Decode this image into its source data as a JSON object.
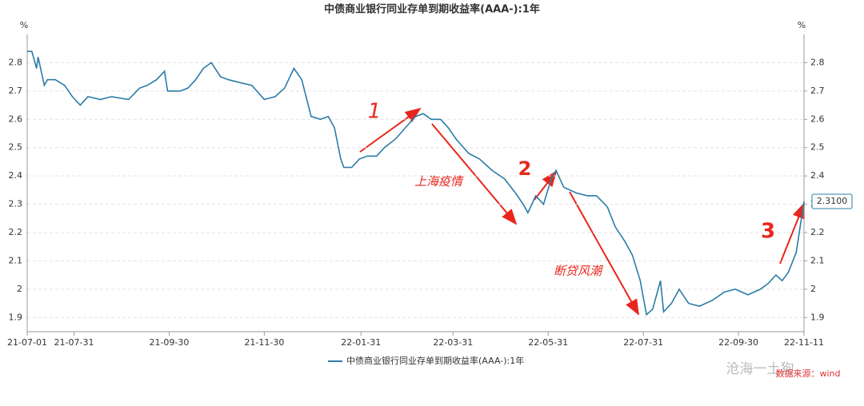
{
  "chart_data": {
    "type": "line",
    "title": "中债商业银行同业存单到期收益率(AAA-):1年",
    "y_unit": "%",
    "y2_unit": "%",
    "x": [
      "21-07-01",
      "21-07-04",
      "21-07-07",
      "21-07-08",
      "21-07-12",
      "21-07-14",
      "21-07-19",
      "21-07-25",
      "21-07-30",
      "21-08-04",
      "21-08-09",
      "21-08-17",
      "21-08-24",
      "21-09-04",
      "21-09-11",
      "21-09-16",
      "21-09-22",
      "21-09-27",
      "21-09-29",
      "21-10-07",
      "21-10-12",
      "21-10-17",
      "21-10-22",
      "21-10-27",
      "21-11-02",
      "21-11-07",
      "21-11-14",
      "21-11-22",
      "21-11-30",
      "21-12-07",
      "21-12-13",
      "21-12-19",
      "21-12-24",
      "21-12-30",
      "22-01-05",
      "22-01-10",
      "22-01-14",
      "22-01-18",
      "22-01-20",
      "22-01-25",
      "22-01-30",
      "22-02-04",
      "22-02-10",
      "22-02-15",
      "22-02-22",
      "22-03-02",
      "22-03-07",
      "22-03-12",
      "22-03-17",
      "22-03-23",
      "22-03-28",
      "22-04-02",
      "22-04-10",
      "22-04-17",
      "22-04-25",
      "22-05-03",
      "22-05-10",
      "22-05-15",
      "22-05-18",
      "22-05-23",
      "22-05-28",
      "22-06-02",
      "22-06-05",
      "22-06-10",
      "22-06-18",
      "22-06-25",
      "22-07-01",
      "22-07-08",
      "22-07-13",
      "22-07-19",
      "22-07-24",
      "22-07-29",
      "22-08-02",
      "22-08-06",
      "22-08-11",
      "22-08-13",
      "22-08-18",
      "22-08-23",
      "22-08-29",
      "22-09-05",
      "22-09-13",
      "22-09-21",
      "22-09-28",
      "22-10-06",
      "22-10-14",
      "22-10-19",
      "22-10-24",
      "22-10-28",
      "22-11-01",
      "22-11-06",
      "22-11-11"
    ],
    "series": [
      {
        "name": "中债商业银行同业存单到期收益率(AAA-):1年",
        "color": "#2b7ca8",
        "values": [
          2.84,
          2.84,
          2.78,
          2.82,
          2.72,
          2.74,
          2.74,
          2.72,
          2.68,
          2.65,
          2.68,
          2.67,
          2.68,
          2.67,
          2.71,
          2.72,
          2.74,
          2.77,
          2.7,
          2.7,
          2.71,
          2.74,
          2.78,
          2.8,
          2.75,
          2.74,
          2.73,
          2.72,
          2.67,
          2.68,
          2.71,
          2.78,
          2.74,
          2.61,
          2.6,
          2.61,
          2.57,
          2.46,
          2.43,
          2.43,
          2.46,
          2.47,
          2.47,
          2.5,
          2.53,
          2.58,
          2.61,
          2.62,
          2.6,
          2.6,
          2.57,
          2.53,
          2.48,
          2.46,
          2.42,
          2.39,
          2.34,
          2.3,
          2.27,
          2.33,
          2.3,
          2.39,
          2.42,
          2.36,
          2.34,
          2.33,
          2.33,
          2.29,
          2.22,
          2.17,
          2.12,
          2.03,
          1.91,
          1.93,
          2.03,
          1.92,
          1.95,
          2.0,
          1.95,
          1.94,
          1.96,
          1.99,
          2.0,
          1.98,
          2.0,
          2.02,
          2.05,
          2.03,
          2.06,
          2.13,
          2.31
        ],
        "value_labels": [
          null,
          null,
          null,
          null,
          null,
          null,
          null,
          null,
          null,
          null,
          null,
          null,
          null,
          null,
          null,
          null,
          null,
          null,
          null,
          null,
          null,
          null,
          null,
          null,
          null,
          null,
          null,
          null,
          null,
          null,
          null,
          null,
          null,
          null,
          null,
          null,
          null,
          null,
          null,
          null,
          null,
          null,
          null,
          null,
          null,
          null,
          null,
          null,
          null,
          null,
          null,
          null,
          null,
          null,
          null,
          null,
          null,
          null,
          null,
          null,
          null,
          null,
          null,
          null,
          null,
          null,
          null,
          null,
          null,
          null,
          null,
          null,
          null,
          null,
          null,
          null,
          null,
          null,
          null,
          null,
          null,
          null,
          null,
          null,
          null,
          null,
          null,
          null,
          null,
          null,
          "2.3100"
        ]
      }
    ],
    "xlim": [
      "21-07-01",
      "22-11-11"
    ],
    "xticks": [
      "21-07-01",
      "21-07-31",
      "21-09-30",
      "21-11-30",
      "22-01-31",
      "22-03-31",
      "22-05-31",
      "22-07-31",
      "22-09-30",
      "22-11-11"
    ],
    "ylim": [
      1.85,
      2.9
    ],
    "yticks": [
      1.9,
      2,
      2.1,
      2.2,
      2.3,
      2.4,
      2.5,
      2.6,
      2.7,
      2.8
    ],
    "y2lim": [
      1.85,
      2.9
    ],
    "y2ticks": [
      1.9,
      2,
      2.1,
      2.2,
      2.3,
      2.4,
      2.5,
      2.6,
      2.7,
      2.8
    ],
    "grid": true,
    "legend": "bottom",
    "annotations": [
      "1",
      "上海疫情",
      "2",
      "断贷风潮",
      "3",
      "沧海一土狗",
      "数据来源：wind"
    ]
  }
}
